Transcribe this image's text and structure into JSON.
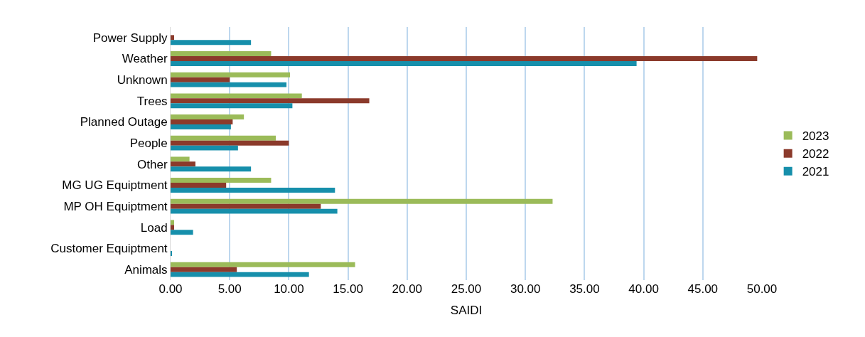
{
  "chart_data": {
    "type": "bar",
    "orientation": "horizontal",
    "xlabel": "SAIDI",
    "categories": [
      "Power Supply",
      "Weather",
      "Unknown",
      "Trees",
      "Planned Outage",
      "People",
      "Other",
      "MG UG Equiptment",
      "MP OH Equiptment",
      "Load",
      "Customer Equiptment",
      "Animals"
    ],
    "series": [
      {
        "name": "2023",
        "color": "#9bbb59",
        "values": [
          0,
          8.5,
          10.1,
          11.1,
          6.2,
          8.9,
          1.6,
          8.5,
          32.3,
          0.3,
          0,
          15.6
        ]
      },
      {
        "name": "2022",
        "color": "#8b3a2b",
        "values": [
          0.3,
          49.6,
          5.0,
          16.8,
          5.25,
          10.0,
          2.1,
          4.7,
          12.7,
          0.3,
          0,
          5.6
        ]
      },
      {
        "name": "2021",
        "color": "#168fab",
        "values": [
          6.8,
          39.4,
          9.8,
          10.3,
          5.1,
          5.7,
          6.8,
          13.9,
          14.1,
          1.9,
          0.1,
          11.7
        ]
      }
    ],
    "xlim": [
      0,
      50
    ],
    "xticks": [
      {
        "value": 0,
        "label": "0.00"
      },
      {
        "value": 5,
        "label": "5.00"
      },
      {
        "value": 10,
        "label": "10.00"
      },
      {
        "value": 15,
        "label": "15.00"
      },
      {
        "value": 20,
        "label": "20.00"
      },
      {
        "value": 25,
        "label": "25.00"
      },
      {
        "value": 30,
        "label": "30.00"
      },
      {
        "value": 35,
        "label": "35.00"
      },
      {
        "value": 40,
        "label": "40.00"
      },
      {
        "value": 45,
        "label": "45.00"
      },
      {
        "value": 50,
        "label": "50.00"
      }
    ],
    "grid": "x",
    "legend": "right"
  }
}
